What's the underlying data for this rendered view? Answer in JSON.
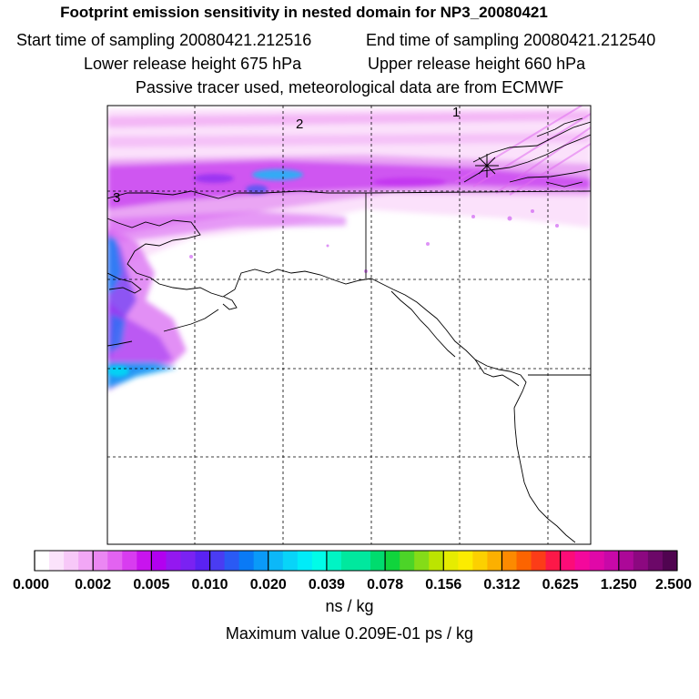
{
  "header": {
    "title": "Footprint emission sensitivity in nested domain for NP3_20080421",
    "start_label": "Start time of sampling 20080421.212516",
    "end_label": "End time of sampling 20080421.212540",
    "lower_label": "Lower release height  675 hPa",
    "upper_label": "Upper release height  660 hPa",
    "tracer_label": "Passive tracer used, meteorological data are from ECMWF"
  },
  "map": {
    "markers": [
      "1",
      "2",
      "3"
    ],
    "release_site_symbol": "asterisk"
  },
  "colorbar": {
    "tick_labels": [
      "0.000",
      "0.002",
      "0.005",
      "0.010",
      "0.020",
      "0.039",
      "0.078",
      "0.156",
      "0.312",
      "0.625",
      "1.250",
      "2.500"
    ],
    "colors": [
      "#ffffff",
      "#fbe3fb",
      "#f7c8f8",
      "#f2a7f6",
      "#eb87f3",
      "#e363f1",
      "#d83cf0",
      "#c814ee",
      "#b200f0",
      "#9418f0",
      "#7a22f2",
      "#5a22f2",
      "#4a3cf2",
      "#2a5af4",
      "#0a7af6",
      "#0a9af8",
      "#0cb8f8",
      "#08d4f8",
      "#00ecf8",
      "#00fce8",
      "#00f4c4",
      "#00e89e",
      "#00dc6e",
      "#10d43c",
      "#4cd428",
      "#84dc18",
      "#bce400",
      "#e6ec00",
      "#fcec00",
      "#fcd000",
      "#fcb000",
      "#fc8a00",
      "#fc6400",
      "#fc3c18",
      "#fc1848",
      "#fc0c78",
      "#f4089c",
      "#e008a8",
      "#c808a8",
      "#ac0898",
      "#8c0880",
      "#6c0868",
      "#500450"
    ],
    "units": "ns / kg"
  },
  "footer": {
    "max_value": "Maximum value  0.209E-01 ps / kg"
  }
}
